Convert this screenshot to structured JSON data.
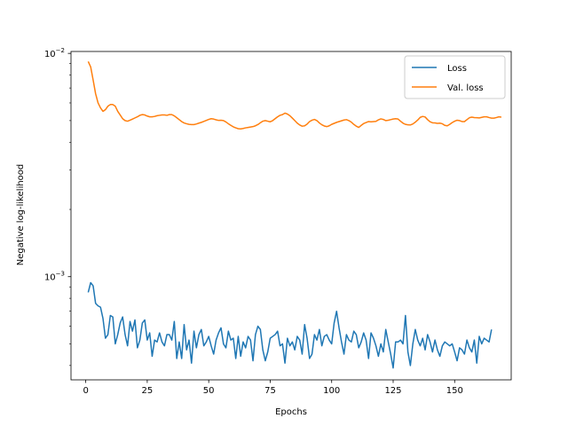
{
  "chart_data": {
    "type": "line",
    "title": "",
    "xlabel": "Epochs",
    "ylabel": "Negative log-likelihood",
    "xlim": [
      -6,
      173
    ],
    "ylim": [
      0.000345,
      0.0102
    ],
    "yscale": "log",
    "grid": false,
    "legend_position": "top-right",
    "x_ticks": [
      0,
      25,
      50,
      75,
      100,
      125,
      150
    ],
    "y_major_ticks": [
      {
        "value": 0.001,
        "base": "10",
        "exp": "−3"
      },
      {
        "value": 0.01,
        "base": "10",
        "exp": "−2"
      }
    ],
    "series": [
      {
        "name": "Loss",
        "color": "#1f77b4",
        "x_start": 1,
        "values": [
          0.00085,
          0.00094,
          0.00091,
          0.00076,
          0.00074,
          0.00073,
          0.00065,
          0.00053,
          0.00055,
          0.00067,
          0.00066,
          0.0005,
          0.00055,
          0.00062,
          0.00066,
          0.00055,
          0.00049,
          0.00063,
          0.00057,
          0.00064,
          0.00048,
          0.00052,
          0.00062,
          0.00064,
          0.00052,
          0.00056,
          0.00044,
          0.00052,
          0.00051,
          0.00056,
          0.00051,
          0.00049,
          0.00055,
          0.00055,
          0.00052,
          0.00063,
          0.00043,
          0.00051,
          0.00043,
          0.00061,
          0.00047,
          0.00052,
          0.00041,
          0.00057,
          0.00048,
          0.00055,
          0.00058,
          0.00049,
          0.00051,
          0.00054,
          0.00049,
          0.00045,
          0.00052,
          0.00056,
          0.00059,
          0.0005,
          0.00048,
          0.00057,
          0.00052,
          0.00053,
          0.00043,
          0.00054,
          0.00044,
          0.00051,
          0.00048,
          0.00054,
          0.00052,
          0.00042,
          0.00055,
          0.0006,
          0.00058,
          0.00047,
          0.00042,
          0.00046,
          0.00053,
          0.00054,
          0.00055,
          0.00057,
          0.00049,
          0.0005,
          0.00041,
          0.00053,
          0.00049,
          0.00051,
          0.00047,
          0.00054,
          0.00052,
          0.00045,
          0.00061,
          0.00053,
          0.00043,
          0.00045,
          0.00055,
          0.00052,
          0.00058,
          0.00049,
          0.00054,
          0.00055,
          0.00052,
          0.0005,
          0.00062,
          0.0007,
          0.00059,
          0.00051,
          0.00045,
          0.00055,
          0.00052,
          0.00051,
          0.00057,
          0.00055,
          0.00048,
          0.00051,
          0.00056,
          0.00052,
          0.00043,
          0.00056,
          0.00053,
          0.00049,
          0.00044,
          0.0005,
          0.00046,
          0.00058,
          0.00051,
          0.00045,
          0.00039,
          0.00051,
          0.00051,
          0.00052,
          0.0005,
          0.00067,
          0.00046,
          0.0004,
          0.0005,
          0.00058,
          0.00052,
          0.00049,
          0.00053,
          0.00047,
          0.00055,
          0.00051,
          0.00046,
          0.00052,
          0.00047,
          0.00044,
          0.00049,
          0.00051,
          0.0005,
          0.00049,
          0.0005,
          0.00046,
          0.00042,
          0.00048,
          0.00047,
          0.00045,
          0.00052,
          0.00048,
          0.00046,
          0.00052,
          0.00041,
          0.00054,
          0.0005,
          0.00053,
          0.00052,
          0.00051,
          0.00058
        ]
      },
      {
        "name": "Val. loss",
        "color": "#ff7f0e",
        "x_start": 1,
        "values": [
          0.0092,
          0.0087,
          0.0076,
          0.0066,
          0.006,
          0.0057,
          0.0055,
          0.0056,
          0.0058,
          0.0059,
          0.0059,
          0.0058,
          0.0055,
          0.0053,
          0.0051,
          0.005,
          0.00497,
          0.00502,
          0.00508,
          0.00514,
          0.0052,
          0.00528,
          0.00532,
          0.0053,
          0.00524,
          0.0052,
          0.0052,
          0.00522,
          0.00526,
          0.00528,
          0.0053,
          0.0053,
          0.00528,
          0.00532,
          0.00532,
          0.00525,
          0.00515,
          0.00505,
          0.00495,
          0.00488,
          0.00484,
          0.00481,
          0.0048,
          0.0048,
          0.00483,
          0.00487,
          0.00491,
          0.00496,
          0.00501,
          0.00506,
          0.0051,
          0.00508,
          0.00504,
          0.00501,
          0.00502,
          0.005,
          0.00493,
          0.00484,
          0.00476,
          0.00469,
          0.00464,
          0.0046,
          0.00459,
          0.00461,
          0.00464,
          0.00466,
          0.00468,
          0.0047,
          0.00474,
          0.0048,
          0.00489,
          0.00497,
          0.005,
          0.00497,
          0.00494,
          0.005,
          0.0051,
          0.0052,
          0.00528,
          0.00532,
          0.0054,
          0.00535,
          0.00526,
          0.00513,
          0.005,
          0.00487,
          0.00478,
          0.00472,
          0.00474,
          0.00482,
          0.00495,
          0.00502,
          0.00506,
          0.005,
          0.00488,
          0.00479,
          0.00473,
          0.0047,
          0.00474,
          0.00481,
          0.00486,
          0.00491,
          0.00495,
          0.00499,
          0.00503,
          0.00505,
          0.005,
          0.00492,
          0.00481,
          0.00472,
          0.00466,
          0.00476,
          0.00485,
          0.0049,
          0.00495,
          0.00494,
          0.00495,
          0.00496,
          0.00504,
          0.00509,
          0.00506,
          0.005,
          0.00502,
          0.00505,
          0.00508,
          0.0051,
          0.00508,
          0.00497,
          0.00487,
          0.00481,
          0.00479,
          0.00478,
          0.00483,
          0.00492,
          0.00503,
          0.00517,
          0.00522,
          0.00519,
          0.00505,
          0.00494,
          0.00489,
          0.00488,
          0.00486,
          0.00487,
          0.00484,
          0.00476,
          0.00474,
          0.00481,
          0.0049,
          0.00497,
          0.00502,
          0.005,
          0.00495,
          0.00495,
          0.00505,
          0.00515,
          0.00518,
          0.00516,
          0.00515,
          0.00514,
          0.00517,
          0.0052,
          0.0052,
          0.00516,
          0.00513,
          0.00513,
          0.00516,
          0.0052,
          0.00518
        ]
      }
    ]
  }
}
